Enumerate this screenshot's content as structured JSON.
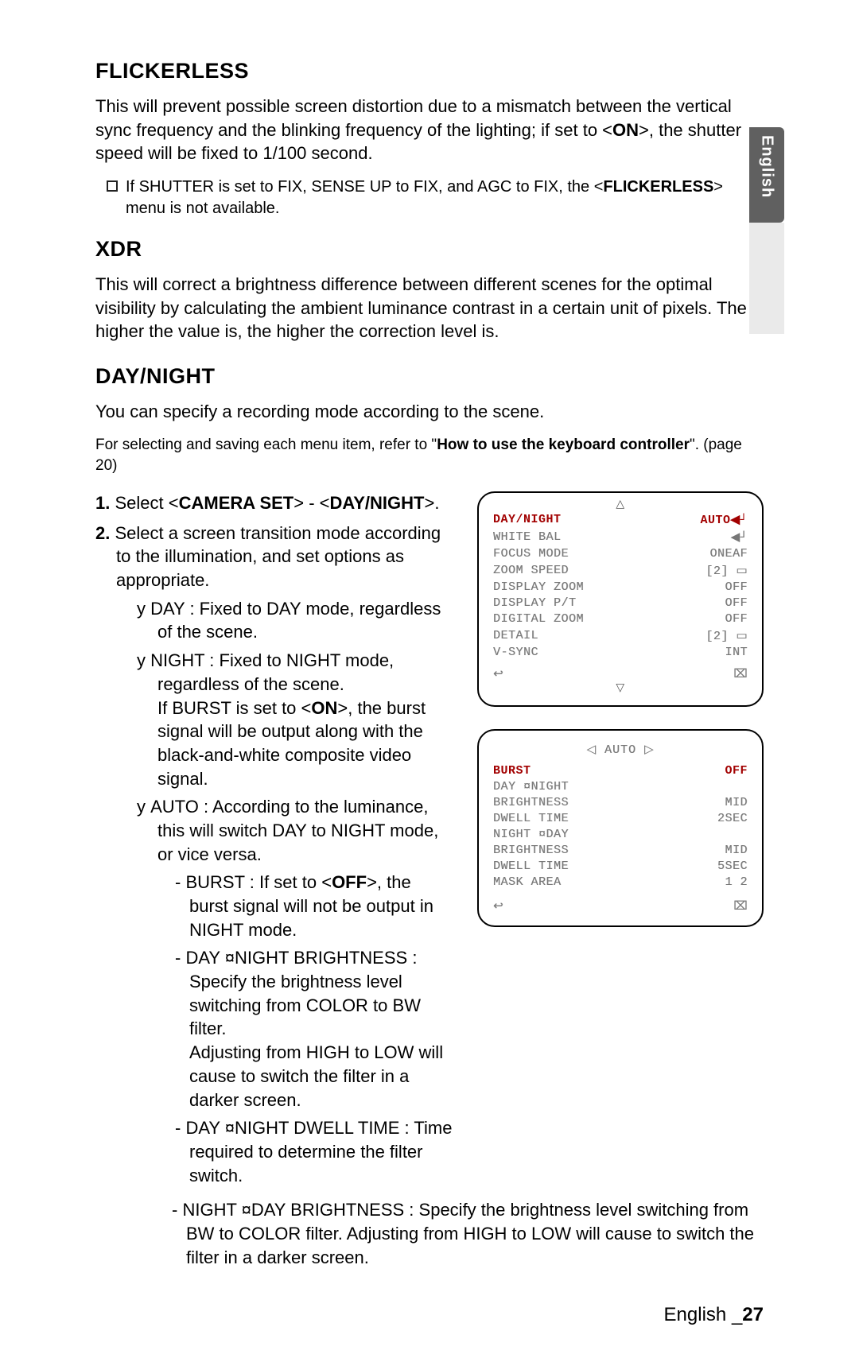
{
  "sideTab": "English",
  "flickerless": {
    "title": "FLICKERLESS",
    "body_a": "This will prevent possible screen distortion due to a mismatch between the vertical sync frequency and the blinking frequency of the lighting; if set to <",
    "body_on": "ON",
    "body_b": ">, the shutter speed will be fixed to 1/100 second.",
    "note_a": "If SHUTTER is set to FIX, SENSE UP to FIX, and AGC to FIX, the <",
    "note_bold": "FLICKERLESS",
    "note_b": "> menu is not available."
  },
  "xdr": {
    "title": "XDR",
    "body": "This will correct a brightness difference between different scenes for the optimal visibility by calculating the ambient luminance contrast in a certain unit of pixels. The higher the value is, the higher the correction level is."
  },
  "dn": {
    "title": "DAY/NIGHT",
    "body": "You can specify a recording mode according to the scene.",
    "fine_a": "For selecting and saving each menu item, refer to \"",
    "fine_bold": "How to use the keyboard controller",
    "fine_b": "\". (page 20)",
    "step1_a": "Select <",
    "step1_b1": "CAMERA SET",
    "step1_mid": "> - <",
    "step1_b2": "DAY/NIGHT",
    "step1_c": ">.",
    "step2": "Select a screen transition mode according to the illumination, and set options as appropriate.",
    "day": "DAY : Fixed to DAY mode, regardless of the scene.",
    "night_a": "NIGHT : Fixed to NIGHT mode, regardless of the scene.",
    "night_b_a": "If BURST is set to <",
    "night_b_on": "ON",
    "night_b_b": ">, the burst signal will be output along with the black-and-white composite video signal.",
    "auto": "AUTO : According to the luminance, this will switch DAY to NIGHT mode, or vice versa.",
    "burst_a": "BURST : If set to <",
    "burst_off": "OFF",
    "burst_b": ">, the burst signal will not be output in NIGHT mode.",
    "dnb_a": "DAY ",
    "arrow_sym": "¤",
    "dnb_b": "NIGHT BRIGHTNESS : Specify the brightness level switching from COLOR to BW filter.",
    "dnb_c": "Adjusting from HIGH to LOW will cause to switch the filter in a darker screen.",
    "dnd": "NIGHT DWELL TIME : Time required to determine the filter switch.",
    "ndb": "DAY BRIGHTNESS : Specify the brightness level switching from BW to COLOR filter. Adjusting from HIGH to LOW will cause to switch the filter in a darker screen."
  },
  "osd1": {
    "rows": [
      {
        "label": "DAY/NIGHT",
        "val": "AUTO",
        "active": true,
        "icon": "enter"
      },
      {
        "label": "WHITE BAL",
        "val": "",
        "dim": true,
        "icon": "enter-dim"
      },
      {
        "label": "FOCUS MODE",
        "val": "ONEAF",
        "dim": true
      },
      {
        "label": "ZOOM SPEED",
        "val": "[2] ▭",
        "dim": true
      },
      {
        "label": "DISPLAY ZOOM",
        "val": "OFF",
        "dim": true
      },
      {
        "label": "DISPLAY P/T",
        "val": "OFF",
        "dim": true
      },
      {
        "label": "DIGITAL ZOOM",
        "val": "OFF",
        "dim": true
      },
      {
        "label": "DETAIL",
        "val": "[2] ▭",
        "dim": true
      },
      {
        "label": "V-SYNC",
        "val": "INT",
        "dim": true
      }
    ],
    "back": "↩",
    "exit": "⌧"
  },
  "osd2": {
    "title": "◁ AUTO ▷",
    "rows": [
      {
        "label": "BURST",
        "val": "OFF",
        "active": true
      },
      {
        "label": "DAY ¤NIGHT",
        "val": "",
        "dim": true
      },
      {
        "label": "  BRIGHTNESS",
        "val": "MID",
        "dim": true,
        "indent": true
      },
      {
        "label": "  DWELL TIME",
        "val": "2SEC",
        "dim": true,
        "indent": true
      },
      {
        "label": "NIGHT ¤DAY",
        "val": "",
        "dim": true
      },
      {
        "label": "  BRIGHTNESS",
        "val": "MID",
        "dim": true,
        "indent": true
      },
      {
        "label": "  DWELL TIME",
        "val": "5SEC",
        "dim": true,
        "indent": true
      },
      {
        "label": "MASK AREA",
        "val": "1   2",
        "dim": true
      }
    ],
    "back": "↩",
    "exit": "⌧"
  },
  "footer": {
    "lang": "English ",
    "sep": "_",
    "page": "27"
  }
}
